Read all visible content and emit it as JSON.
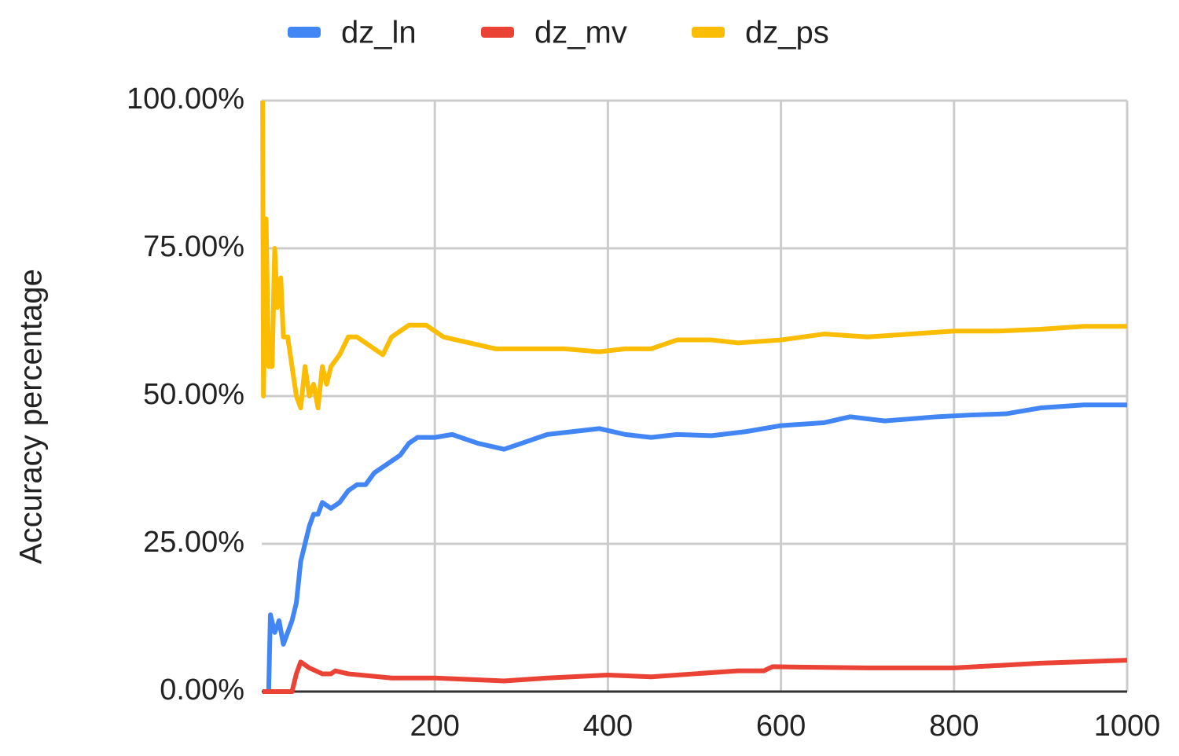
{
  "chart_data": {
    "type": "line",
    "y_label": "Accuracy percentage",
    "xlim": [
      0,
      1000
    ],
    "xticks": [
      200,
      400,
      600,
      800,
      1000
    ],
    "ylim": [
      0,
      100
    ],
    "yticks": [
      {
        "value": 0,
        "label": "0.00%"
      },
      {
        "value": 25,
        "label": "25.00%"
      },
      {
        "value": 50,
        "label": "50.00%"
      },
      {
        "value": 75,
        "label": "75.00%"
      },
      {
        "value": 100,
        "label": "100.00%"
      }
    ],
    "grid": true,
    "legend": "top",
    "series": [
      {
        "name": "dz_ln",
        "color": "#4285f4",
        "x": [
          1,
          8,
          10,
          15,
          20,
          25,
          30,
          35,
          40,
          45,
          50,
          55,
          60,
          65,
          70,
          80,
          90,
          100,
          110,
          120,
          130,
          140,
          150,
          160,
          170,
          180,
          200,
          220,
          250,
          280,
          300,
          330,
          360,
          390,
          420,
          450,
          480,
          520,
          560,
          600,
          650,
          680,
          720,
          780,
          820,
          860,
          900,
          950,
          1000
        ],
        "values": [
          0,
          0,
          13,
          10,
          12,
          8,
          10,
          12,
          15,
          22,
          25,
          28,
          30,
          30,
          32,
          31,
          32,
          34,
          35,
          35,
          37,
          38,
          39,
          40,
          42,
          43,
          43,
          43.5,
          42,
          41,
          42,
          43.5,
          44,
          44.5,
          43.5,
          43,
          43.5,
          43.3,
          44,
          45,
          45.5,
          46.5,
          45.8,
          46.5,
          46.8,
          47,
          48,
          48.5,
          48.5
        ]
      },
      {
        "name": "dz_mv",
        "color": "#ea4335",
        "x": [
          1,
          35,
          40,
          45,
          55,
          70,
          80,
          85,
          100,
          150,
          200,
          280,
          330,
          400,
          450,
          500,
          550,
          580,
          590,
          700,
          800,
          900,
          1000
        ],
        "values": [
          0,
          0,
          3,
          5,
          4,
          3,
          3,
          3.5,
          3,
          2.3,
          2.3,
          1.8,
          2.3,
          2.8,
          2.5,
          3,
          3.5,
          3.5,
          4.2,
          4,
          4,
          4.8,
          5.3
        ]
      },
      {
        "name": "dz_ps",
        "color": "#fbbc04",
        "x": [
          1,
          2,
          5,
          8,
          12,
          15,
          18,
          22,
          25,
          30,
          35,
          40,
          45,
          50,
          55,
          60,
          65,
          70,
          75,
          80,
          90,
          100,
          110,
          120,
          130,
          140,
          150,
          170,
          190,
          210,
          240,
          270,
          300,
          350,
          390,
          420,
          450,
          480,
          520,
          550,
          600,
          650,
          700,
          750,
          800,
          850,
          900,
          950,
          1000
        ],
        "values": [
          100,
          50,
          80,
          55,
          55,
          75,
          65,
          70,
          60,
          60,
          55,
          50,
          48,
          55,
          50,
          52,
          48,
          55,
          52,
          55,
          57,
          60,
          60,
          59,
          58,
          57,
          60,
          62,
          62,
          60,
          59,
          58,
          58,
          58,
          57.5,
          58,
          58,
          59.5,
          59.5,
          59,
          59.5,
          60.5,
          60,
          60.5,
          61,
          61,
          61.3,
          61.8,
          61.8
        ]
      }
    ]
  }
}
